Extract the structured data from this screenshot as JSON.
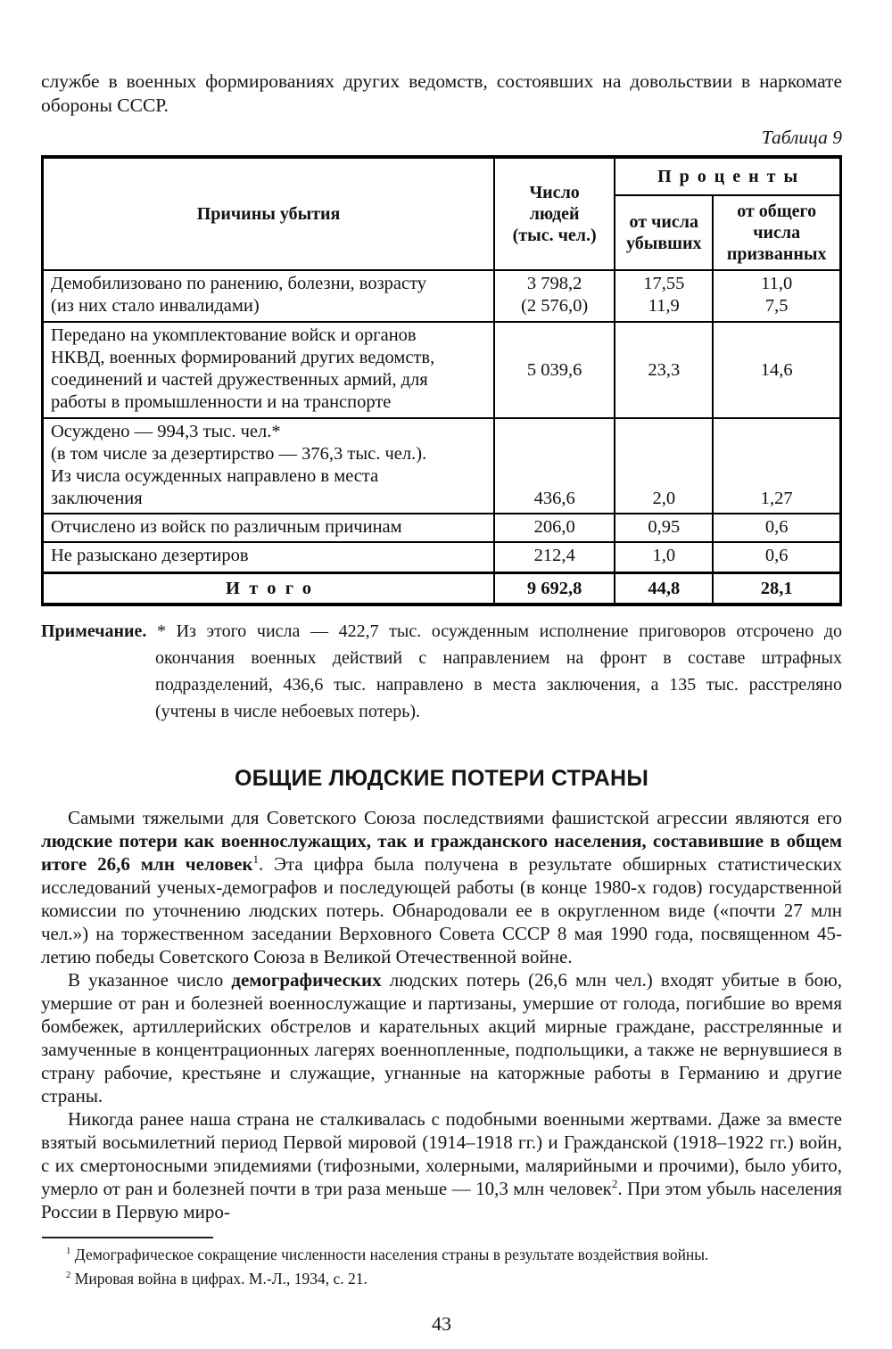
{
  "page": {
    "number": "43"
  },
  "colors": {
    "text": "#161616",
    "background": "#ffffff",
    "border": "#000000"
  },
  "intro": {
    "text": "службе в военных формированиях других ведомств, состоявших на довольствии в наркомате обороны СССР."
  },
  "table": {
    "caption": "Таблица 9",
    "header": {
      "reason": "Причины убытия",
      "number": "Число\nлюдей\n(тыс. чел.)",
      "percents": "Проценты",
      "pct_departed": "от числа\nубывших",
      "pct_called": "от общего\nчисла\nпризванных"
    },
    "rows": [
      {
        "reason": "Демобилизовано по ранению, болезни, возрасту\n(из них стало инвалидами)",
        "number": "3 798,2\n(2 576,0)",
        "pct_departed": "17,55\n11,9",
        "pct_called": "11,0\n7,5"
      },
      {
        "reason": "Передано на укомплектование войск и органов\nНКВД, военных формирований других ведомств,\nсоединений и частей дружественных армий, для\nработы в промышленности и на транспорте",
        "number": "5 039,6",
        "pct_departed": "23,3",
        "pct_called": "14,6"
      },
      {
        "reason": "Осуждено — 994,3 тыс. чел.*\n(в том числе за дезертирство — 376,3 тыс. чел.).\nИз числа осужденных направлено в места\nзаключения",
        "number": "436,6",
        "pct_departed": "2,0",
        "pct_called": "1,27"
      },
      {
        "reason": "Отчислено из войск по различным причинам",
        "number": "206,0",
        "pct_departed": "0,95",
        "pct_called": "0,6"
      },
      {
        "reason": "Не разыскано дезертиров",
        "number": "212,4",
        "pct_departed": "1,0",
        "pct_called": "0,6"
      }
    ],
    "total": {
      "label": "Итого",
      "number": "9 692,8",
      "pct_departed": "44,8",
      "pct_called": "28,1"
    }
  },
  "note": {
    "segments": [
      {
        "t": "Примечание.",
        "b": true
      },
      {
        "t": " * Из этого числа — 422,7 тыс. осужденным исполнение приговоров отсрочено до окончания военных действий с направлением на фронт в составе штрафных подразделений, 436,6 тыс. направлено в места заключения, а 135 тыс. расстреляно (учтены в числе небоевых потерь)."
      }
    ]
  },
  "section": {
    "heading": "ОБЩИЕ ЛЮДСКИЕ ПОТЕРИ СТРАНЫ"
  },
  "paragraphs": [
    [
      {
        "t": "Самыми тяжелыми для Советского Союза последствиями фашистской агрессии являются его "
      },
      {
        "t": "людские потери как военнослужащих, так и гражданского населения, составившие в общем итоге 26,6 млн человек",
        "b": true
      },
      {
        "t": "1",
        "sup": true
      },
      {
        "t": ". Эта цифра была получена в результате обширных статистических исследований ученых-демографов и последующей работы (в конце 1980-х годов) государственной комиссии по уточнению людских потерь. Обнародовали ее в округленном виде («почти 27 млн чел.») на торжественном заседании Верховного Совета СССР 8 мая 1990 года, посвященном 45-летию победы Советского Союза в Великой Отечественной войне."
      }
    ],
    [
      {
        "t": "В указанное число "
      },
      {
        "t": "демографических",
        "b": true
      },
      {
        "t": " людских потерь (26,6 млн чел.) входят убитые в бою, умершие от ран и болезней военнослужащие и партизаны, умершие от голода, погибшие во время бомбежек, артиллерийских обстрелов и карательных акций мирные граждане, расстрелянные и замученные в концентрационных лагерях военнопленные, подпольщики, а также не вернувшиеся в страну рабочие, крестьяне и служащие, угнанные на каторжные работы в Германию и другие страны."
      }
    ],
    [
      {
        "t": "Никогда ранее наша страна не сталкивалась с подобными военными жертвами. Даже за вместе взятый восьмилетний период Первой мировой (1914–1918 гг.) и Гражданской (1918–1922 гг.) войн, с их смертоносными эпидемиями (тифозными, холерными, малярийными и прочими), было убито, умерло от ран и болезней почти в три раза меньше — 10,3 млн человек"
      },
      {
        "t": "2",
        "sup": true
      },
      {
        "t": ". При этом убыль населения России в Первую миро-"
      }
    ]
  ],
  "footnotes": [
    [
      {
        "t": "1",
        "sup": true
      },
      {
        "t": " Демографическое сокращение численности населения страны в результате воздействия войны."
      }
    ],
    [
      {
        "t": "2",
        "sup": true
      },
      {
        "t": " Мировая война в цифрах. М.-Л., 1934, с. 21."
      }
    ]
  ]
}
